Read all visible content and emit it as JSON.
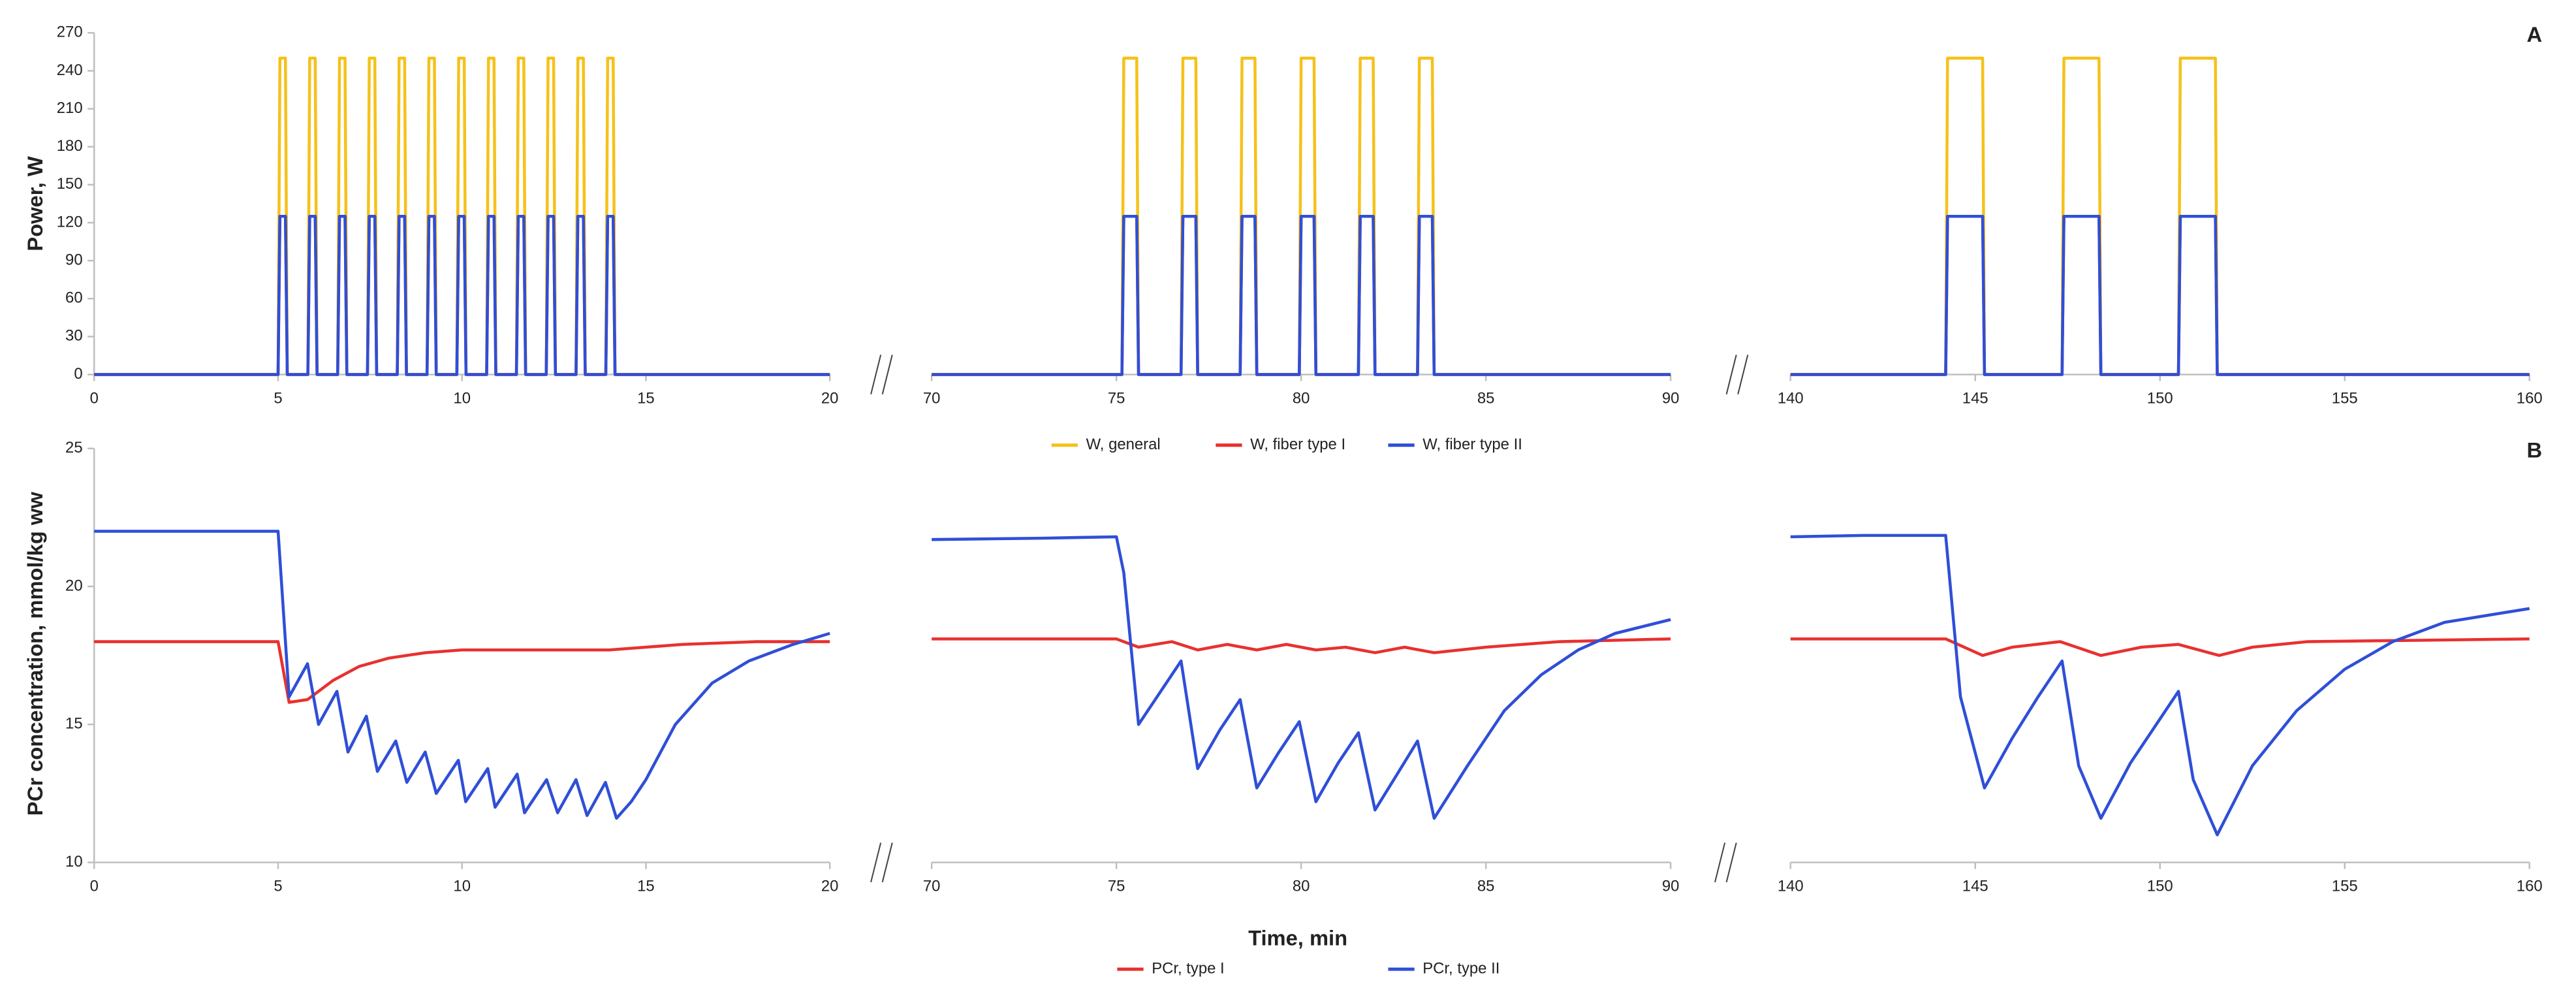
{
  "chart_data": [
    {
      "type": "line",
      "panel_label": "A",
      "ylabel": "Power, W",
      "legend": "bottom",
      "ylim": [
        0,
        270
      ],
      "yticks": [
        0,
        30,
        60,
        90,
        120,
        150,
        180,
        210,
        240,
        270
      ],
      "panels": [
        {
          "xlim": [
            0,
            20
          ],
          "xticks": [
            0,
            5,
            10,
            15,
            20
          ],
          "x": [
            0,
            5,
            5.05,
            5.2,
            5.25,
            5.81,
            5.86,
            6.01,
            6.06,
            6.62,
            6.67,
            6.82,
            6.87,
            7.43,
            7.48,
            7.63,
            7.68,
            8.24,
            8.29,
            8.44,
            8.49,
            9.05,
            9.1,
            9.25,
            9.3,
            9.86,
            9.91,
            10.06,
            10.11,
            10.67,
            10.72,
            10.87,
            10.92,
            11.48,
            11.53,
            11.68,
            11.73,
            12.29,
            12.34,
            12.49,
            12.54,
            13.1,
            13.15,
            13.3,
            13.35,
            13.91,
            13.96,
            14.11,
            14.16,
            20
          ]
        },
        {
          "xlim": [
            70,
            90
          ],
          "xticks": [
            70,
            75,
            80,
            85,
            90
          ],
          "x": [
            70,
            75.15,
            75.2,
            75.55,
            75.6,
            76.75,
            76.8,
            77.15,
            77.2,
            78.35,
            78.4,
            78.75,
            78.8,
            79.95,
            80,
            80.35,
            80.4,
            81.55,
            81.6,
            81.95,
            82,
            83.15,
            83.2,
            83.55,
            83.6,
            90
          ]
        },
        {
          "xlim": [
            140,
            160
          ],
          "xticks": [
            140,
            145,
            150,
            155,
            160
          ],
          "x": [
            140,
            144.2,
            144.25,
            145.2,
            145.25,
            147.35,
            147.4,
            148.35,
            148.4,
            150.5,
            150.55,
            151.5,
            151.55,
            160
          ]
        }
      ],
      "series": [
        {
          "name": "W, general",
          "color": "#f5c21b",
          "values": [
            [
              0,
              0,
              250,
              250,
              0,
              0,
              250,
              250,
              0,
              0,
              250,
              250,
              0,
              0,
              250,
              250,
              0,
              0,
              250,
              250,
              0,
              0,
              250,
              250,
              0,
              0,
              250,
              250,
              0,
              0,
              250,
              250,
              0,
              0,
              250,
              250,
              0,
              0,
              250,
              250,
              0,
              0,
              250,
              250,
              0,
              0,
              250,
              250,
              0,
              0
            ],
            [
              0,
              0,
              250,
              250,
              0,
              0,
              250,
              250,
              0,
              0,
              250,
              250,
              0,
              0,
              250,
              250,
              0,
              0,
              250,
              250,
              0,
              0,
              250,
              250,
              0,
              0
            ],
            [
              0,
              0,
              250,
              250,
              0,
              0,
              250,
              250,
              0,
              0,
              250,
              250,
              0,
              0
            ]
          ]
        },
        {
          "name": "W, fiber type I",
          "color": "#e8312f",
          "values": [
            [
              0,
              0,
              125,
              125,
              0,
              0,
              125,
              125,
              0,
              0,
              125,
              125,
              0,
              0,
              125,
              125,
              0,
              0,
              125,
              125,
              0,
              0,
              125,
              125,
              0,
              0,
              125,
              125,
              0,
              0,
              125,
              125,
              0,
              0,
              125,
              125,
              0,
              0,
              125,
              125,
              0,
              0,
              125,
              125,
              0,
              0,
              125,
              125,
              0,
              0
            ],
            [
              0,
              0,
              125,
              125,
              0,
              0,
              125,
              125,
              0,
              0,
              125,
              125,
              0,
              0,
              125,
              125,
              0,
              0,
              125,
              125,
              0,
              0,
              125,
              125,
              0,
              0
            ],
            [
              0,
              0,
              125,
              125,
              0,
              0,
              125,
              125,
              0,
              0,
              125,
              125,
              0,
              0
            ]
          ]
        },
        {
          "name": "W, fiber type II",
          "color": "#2f4fd6",
          "values": [
            [
              0,
              0,
              125,
              125,
              0,
              0,
              125,
              125,
              0,
              0,
              125,
              125,
              0,
              0,
              125,
              125,
              0,
              0,
              125,
              125,
              0,
              0,
              125,
              125,
              0,
              0,
              125,
              125,
              0,
              0,
              125,
              125,
              0,
              0,
              125,
              125,
              0,
              0,
              125,
              125,
              0,
              0,
              125,
              125,
              0,
              0,
              125,
              125,
              0,
              0
            ],
            [
              0,
              0,
              125,
              125,
              0,
              0,
              125,
              125,
              0,
              0,
              125,
              125,
              0,
              0,
              125,
              125,
              0,
              0,
              125,
              125,
              0,
              0,
              125,
              125,
              0,
              0
            ],
            [
              0,
              0,
              125,
              125,
              0,
              0,
              125,
              125,
              0,
              0,
              125,
              125,
              0,
              0
            ]
          ]
        }
      ]
    },
    {
      "type": "line",
      "panel_label": "B",
      "ylabel": "PCr concentration, mmol/kg ww",
      "xlabel": "Time, min",
      "legend": "bottom",
      "ylim": [
        10,
        25
      ],
      "yticks": [
        10,
        15,
        20,
        25
      ],
      "panels": [
        {
          "xlim": [
            0,
            20
          ],
          "xticks": [
            0,
            5,
            10,
            15,
            20
          ]
        },
        {
          "xlim": [
            70,
            90
          ],
          "xticks": [
            70,
            75,
            80,
            85,
            90
          ]
        },
        {
          "xlim": [
            140,
            160
          ],
          "xticks": [
            140,
            145,
            150,
            155,
            160
          ]
        }
      ],
      "series": [
        {
          "name": "PCr, type I",
          "color": "#e8312f",
          "x": [
            [
              0,
              5,
              5.3,
              5.8,
              6.5,
              7.2,
              8,
              9,
              10,
              11,
              12,
              13,
              14,
              15,
              16,
              18,
              20
            ],
            [
              70,
              75,
              75.6,
              76.5,
              77.2,
              78,
              78.8,
              79.6,
              80.4,
              81.2,
              82,
              82.8,
              83.6,
              85,
              87,
              90
            ],
            [
              140,
              144.2,
              145.2,
              146,
              147.3,
              148.4,
              149.5,
              150.5,
              151.6,
              152.5,
              154,
              160
            ]
          ],
          "values": [
            [
              18,
              18,
              15.8,
              15.9,
              16.6,
              17.1,
              17.4,
              17.6,
              17.7,
              17.7,
              17.7,
              17.7,
              17.7,
              17.8,
              17.9,
              18,
              18
            ],
            [
              18.1,
              18.1,
              17.8,
              18,
              17.7,
              17.9,
              17.7,
              17.9,
              17.7,
              17.8,
              17.6,
              17.8,
              17.6,
              17.8,
              18,
              18.1
            ],
            [
              18.1,
              18.1,
              17.5,
              17.8,
              18,
              17.5,
              17.8,
              17.9,
              17.5,
              17.8,
              18,
              18.1
            ]
          ]
        },
        {
          "name": "PCr, type II",
          "color": "#2f4fd6",
          "x": [
            [
              0,
              5,
              5.3,
              5.8,
              6.1,
              6.6,
              6.9,
              7.4,
              7.7,
              8.2,
              8.5,
              9.0,
              9.3,
              9.9,
              10.1,
              10.7,
              10.9,
              11.5,
              11.7,
              12.3,
              12.6,
              13.1,
              13.4,
              13.9,
              14.2,
              14.6,
              15,
              15.8,
              16.8,
              17.8,
              19,
              20
            ],
            [
              70,
              73,
              75,
              75.2,
              75.6,
              76.2,
              76.75,
              77.2,
              77.8,
              78.35,
              78.8,
              79.4,
              79.95,
              80.4,
              81,
              81.55,
              82,
              82.6,
              83.15,
              83.6,
              84.5,
              85.5,
              86.5,
              87.5,
              88.5,
              90
            ],
            [
              140,
              142,
              144.2,
              144.6,
              145.25,
              146,
              146.7,
              147.35,
              147.8,
              148.4,
              149.2,
              149.9,
              150.5,
              150.9,
              151.55,
              152.5,
              153.7,
              155,
              156.3,
              157.7,
              160
            ]
          ],
          "values": [
            [
              22,
              22,
              16,
              17.2,
              15,
              16.2,
              14,
              15.3,
              13.3,
              14.4,
              12.9,
              14,
              12.5,
              13.7,
              12.2,
              13.4,
              12,
              13.2,
              11.8,
              13,
              11.8,
              13,
              11.7,
              12.9,
              11.6,
              12.2,
              13,
              15,
              16.5,
              17.3,
              17.9,
              18.3
            ],
            [
              21.7,
              21.75,
              21.8,
              20.5,
              15,
              16.2,
              17.3,
              13.4,
              14.8,
              15.9,
              12.7,
              14,
              15.1,
              12.2,
              13.6,
              14.7,
              11.9,
              13.2,
              14.4,
              11.6,
              13.5,
              15.5,
              16.8,
              17.7,
              18.3,
              18.8
            ],
            [
              21.8,
              21.85,
              21.85,
              16,
              12.7,
              14.5,
              16,
              17.3,
              13.5,
              11.6,
              13.6,
              15,
              16.2,
              13,
              11,
              13.5,
              15.5,
              17,
              18,
              18.7,
              19.2
            ]
          ]
        }
      ]
    }
  ]
}
